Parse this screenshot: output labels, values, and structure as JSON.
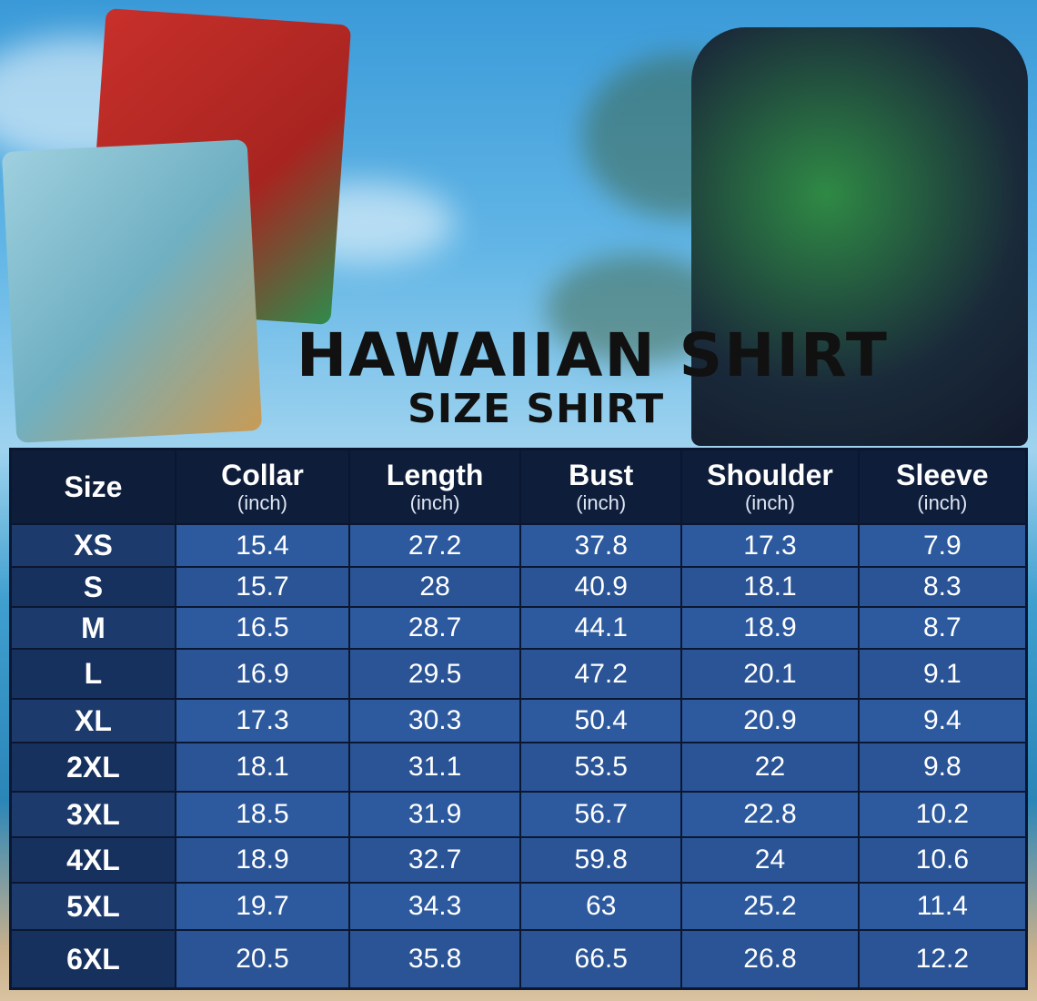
{
  "title": "HAWAIIAN SHIRT",
  "subtitle": "SIZE SHIRT",
  "table": {
    "headers": [
      {
        "label": "Size",
        "unit": ""
      },
      {
        "label": "Collar",
        "unit": "(inch)"
      },
      {
        "label": "Length",
        "unit": "(inch)"
      },
      {
        "label": "Bust",
        "unit": "(inch)"
      },
      {
        "label": "Shoulder",
        "unit": "(inch)"
      },
      {
        "label": "Sleeve",
        "unit": "(inch)"
      }
    ],
    "rows": [
      [
        "XS",
        "15.4",
        "27.2",
        "37.8",
        "17.3",
        "7.9"
      ],
      [
        "S",
        "15.7",
        "28",
        "40.9",
        "18.1",
        "8.3"
      ],
      [
        "M",
        "16.5",
        "28.7",
        "44.1",
        "18.9",
        "8.7"
      ],
      [
        "L",
        "16.9",
        "29.5",
        "47.2",
        "20.1",
        "9.1"
      ],
      [
        "XL",
        "17.3",
        "30.3",
        "50.4",
        "20.9",
        "9.4"
      ],
      [
        "2XL",
        "18.1",
        "31.1",
        "53.5",
        "22",
        "9.8"
      ],
      [
        "3XL",
        "18.5",
        "31.9",
        "56.7",
        "22.8",
        "10.2"
      ],
      [
        "4XL",
        "18.9",
        "32.7",
        "59.8",
        "24",
        "10.6"
      ],
      [
        "5XL",
        "19.7",
        "34.3",
        "63",
        "25.2",
        "11.4"
      ],
      [
        "6XL",
        "20.5",
        "35.8",
        "66.5",
        "26.8",
        "12.2"
      ]
    ]
  },
  "colors": {
    "header_bg": "#0e1d3a",
    "cell_bg": "#2a5496",
    "title": "#111111"
  }
}
